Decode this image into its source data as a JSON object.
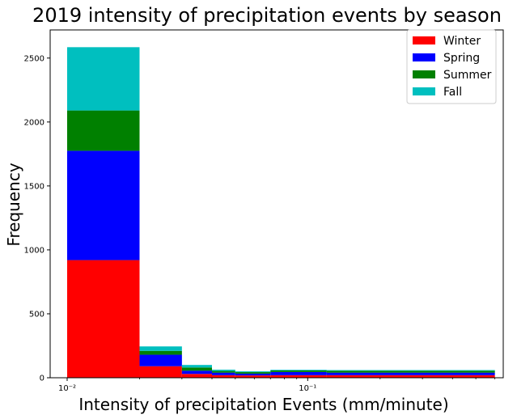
{
  "chart_data": {
    "type": "bar",
    "stacked": true,
    "title": "2019 intensity of precipitation events by season",
    "xlabel": "Intensity of precipitation Events (mm/minute)",
    "ylabel": "Frequency",
    "xscale": "log",
    "xlim": [
      0.0085,
      0.65
    ],
    "ylim": [
      0,
      2720
    ],
    "legend_position": "top-right",
    "grid": false,
    "y_ticks": [
      0,
      500,
      1000,
      1500,
      2000,
      2500
    ],
    "x_ticks": [
      {
        "value": 0.01,
        "label": "10⁻²"
      },
      {
        "value": 0.1,
        "label": "10⁻¹"
      }
    ],
    "x_minor_ticks": [
      0.02,
      0.03,
      0.04,
      0.05,
      0.06,
      0.07,
      0.08,
      0.09,
      0.2,
      0.3,
      0.4,
      0.5,
      0.6
    ],
    "bins": [
      [
        0.01,
        0.02
      ],
      [
        0.02,
        0.03
      ],
      [
        0.03,
        0.04
      ],
      [
        0.04,
        0.05
      ],
      [
        0.05,
        0.07
      ],
      [
        0.07,
        0.12
      ],
      [
        0.12,
        0.6
      ]
    ],
    "series": [
      {
        "name": "Winter",
        "color": "#ff0000",
        "values": [
          920,
          90,
          30,
          20,
          18,
          20,
          20
        ]
      },
      {
        "name": "Spring",
        "color": "#0000ff",
        "values": [
          855,
          90,
          25,
          20,
          14,
          25,
          20
        ]
      },
      {
        "name": "Summer",
        "color": "#008000",
        "values": [
          315,
          30,
          25,
          13,
          12,
          12,
          15
        ]
      },
      {
        "name": "Fall",
        "color": "#00bfbf",
        "values": [
          495,
          35,
          20,
          10,
          6,
          5,
          5
        ]
      }
    ]
  }
}
